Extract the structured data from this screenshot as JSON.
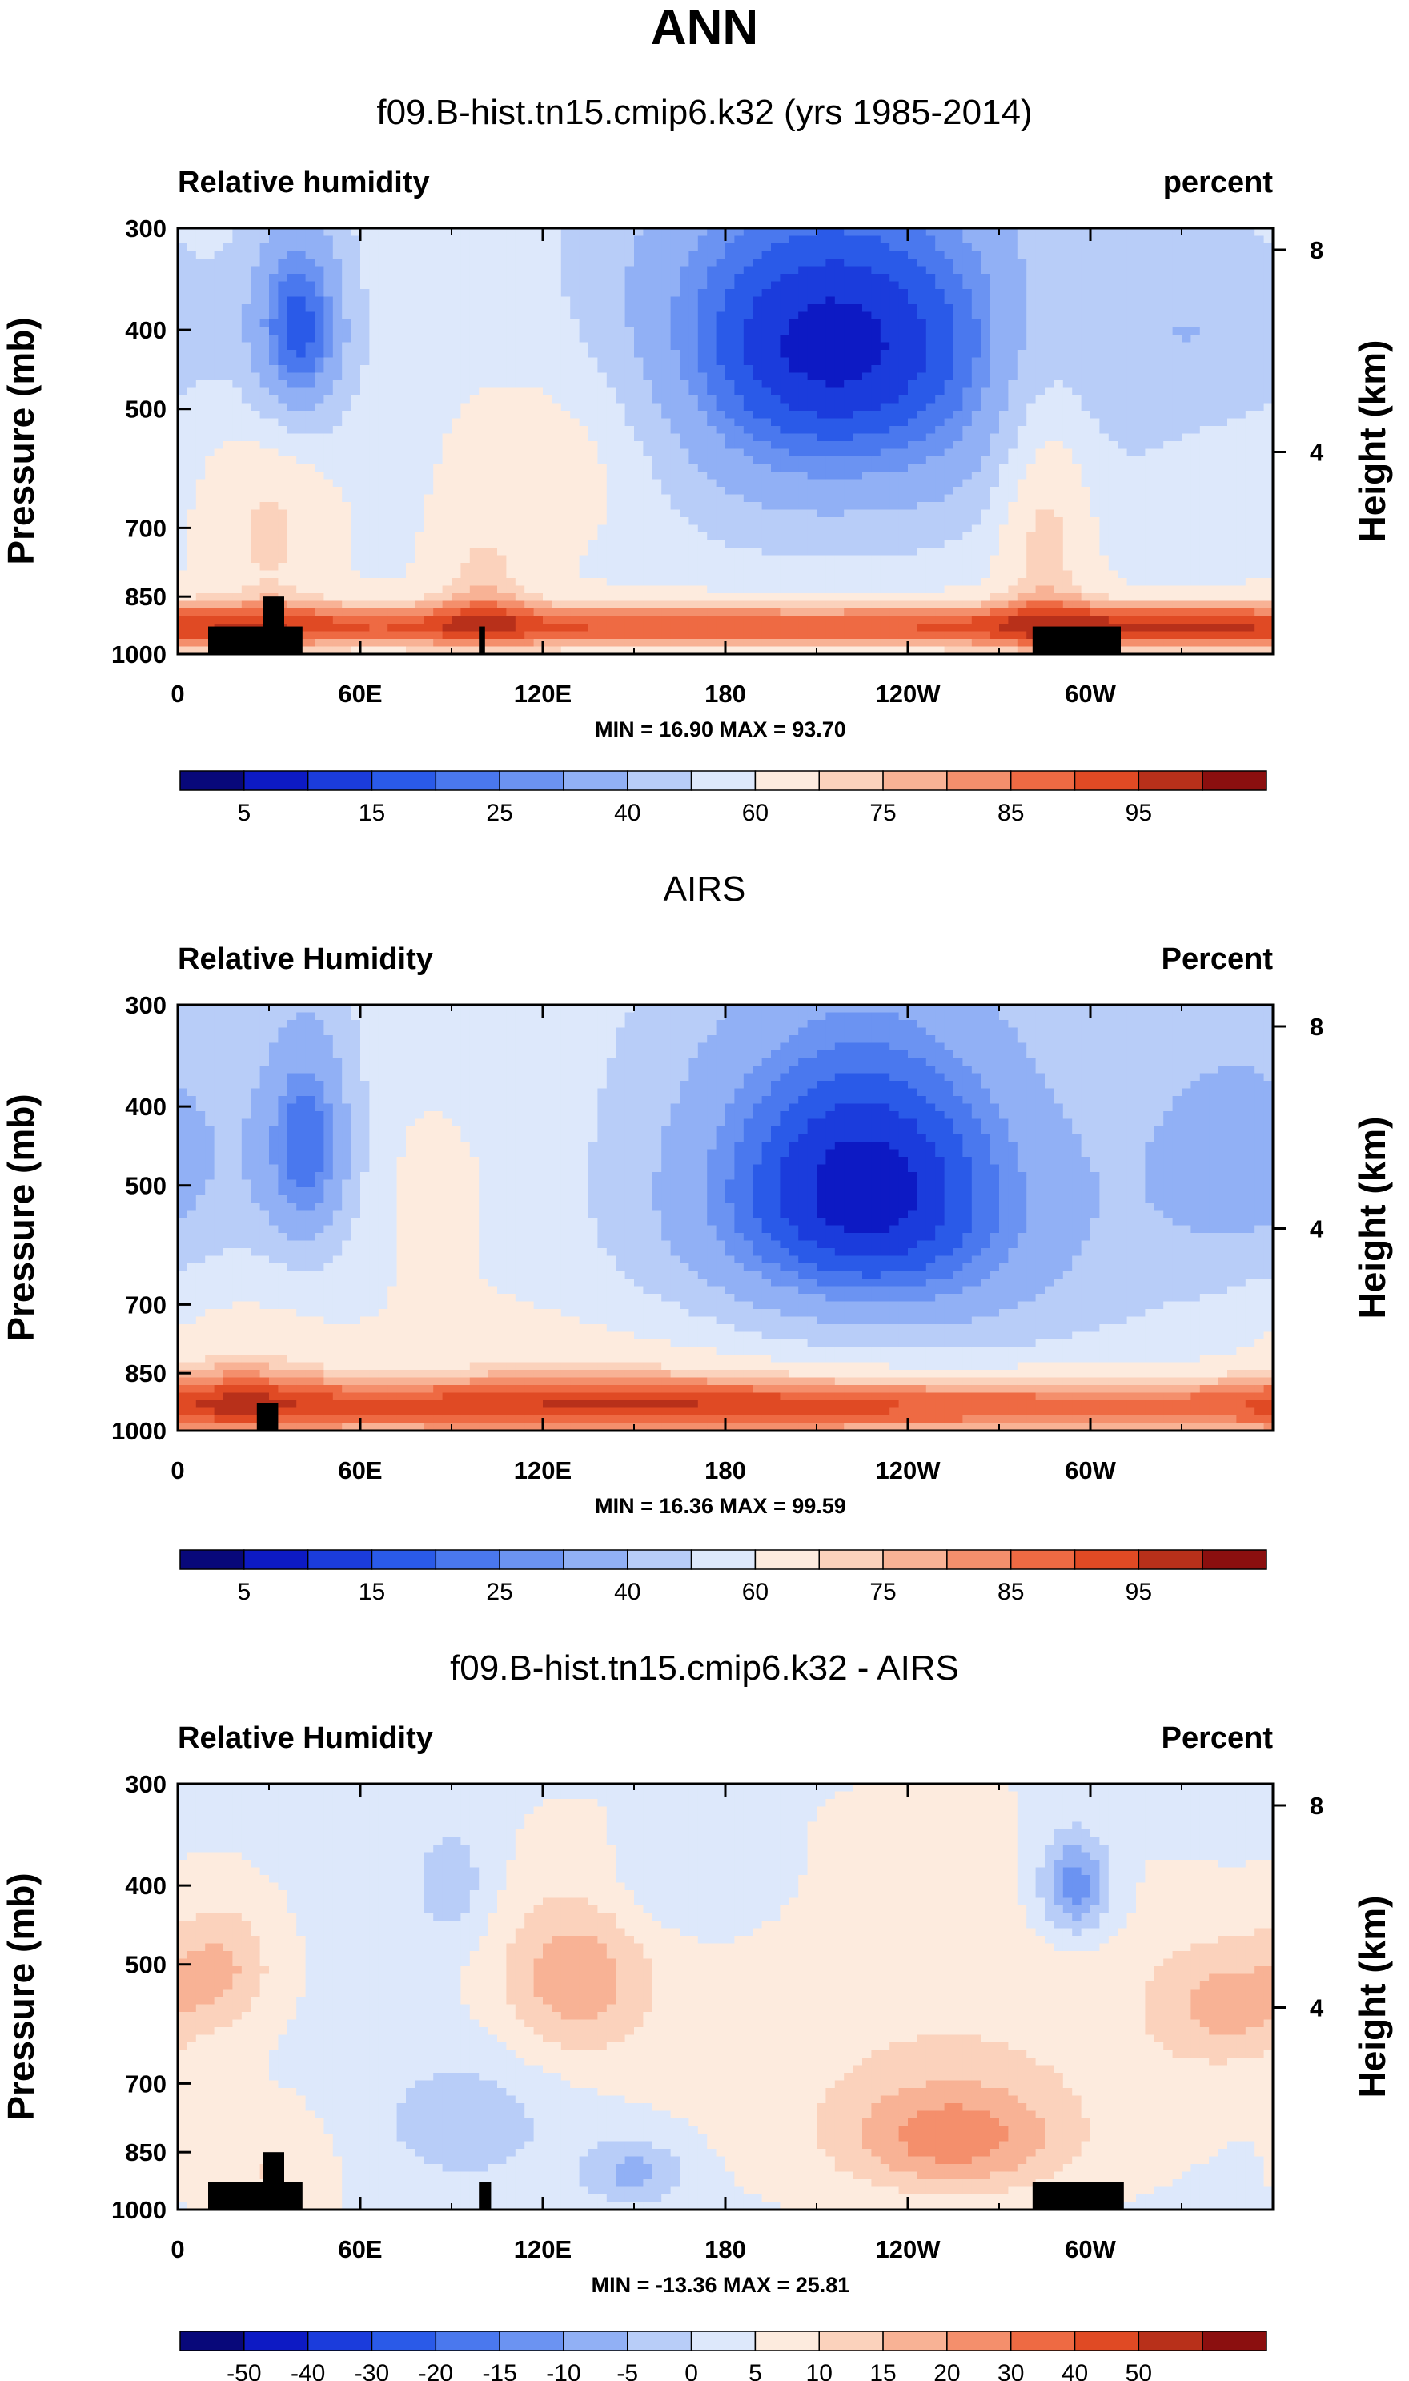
{
  "figure_title": "ANN",
  "chart_data": [
    {
      "type": "heatmap",
      "title": "f09.B-hist.tn15.cmip6.k32 (yrs 1985-2014)",
      "left_label": "Relative humidity",
      "right_label": "percent",
      "ylabel": "Pressure (mb)",
      "ylabel_right": "Height (km)",
      "x_ticks": [
        "0",
        "60E",
        "120E",
        "180",
        "120W",
        "60W"
      ],
      "x_tick_positions": [
        0,
        60,
        120,
        180,
        240,
        300
      ],
      "xlim": [
        0,
        360
      ],
      "y_ticks": [
        "300",
        "400",
        "500",
        "700",
        "850",
        "1000"
      ],
      "y_tick_values": [
        300,
        400,
        500,
        700,
        850,
        1000
      ],
      "ylim": [
        300,
        1000
      ],
      "y_right_ticks": [
        "8",
        "4"
      ],
      "y_right_values": [
        8,
        4
      ],
      "stats": "MIN = 16.90   MAX = 93.70",
      "colorbar": {
        "levels": [
          5,
          10,
          15,
          20,
          25,
          30,
          40,
          50,
          60,
          70,
          75,
          80,
          85,
          90,
          95
        ],
        "labels": [
          "5",
          "15",
          "25",
          "40",
          "60",
          "75",
          "85",
          "95"
        ],
        "colors": [
          "#08087a",
          "#0d1ac4",
          "#1b3cdc",
          "#2a5ae8",
          "#4a78ee",
          "#6b93f2",
          "#91b0f5",
          "#b8cdf8",
          "#dde8fb",
          "#fdebde",
          "#fbd2bc",
          "#f8b295",
          "#f48f6c",
          "#ee6a43",
          "#e04a24",
          "#b8301a",
          "#8b0f0f"
        ]
      },
      "field": {
        "base": 58,
        "features": [
          {
            "lon": 40,
            "p": 400,
            "slon": 12,
            "sp": 90,
            "amp": -40
          },
          {
            "lon": 215,
            "p": 400,
            "slon": 55,
            "sp": 140,
            "amp": -48
          },
          {
            "lon": 210,
            "p": 620,
            "slon": 70,
            "sp": 120,
            "amp": -12
          },
          {
            "lon": 345,
            "p": 400,
            "slon": 28,
            "sp": 80,
            "amp": -14
          },
          {
            "lon": 130,
            "p": 560,
            "slon": 28,
            "sp": 130,
            "amp": 18
          },
          {
            "lon": 285,
            "p": 650,
            "slon": 12,
            "sp": 200,
            "amp": 22
          },
          {
            "lon": 30,
            "p": 700,
            "slon": 15,
            "sp": 150,
            "amp": 14
          },
          {
            "lon": 180,
            "p": 925,
            "slon": 500,
            "sp": 45,
            "amp": 32
          },
          {
            "lon": 330,
            "p": 925,
            "slon": 40,
            "sp": 50,
            "amp": 8
          },
          {
            "lon": 100,
            "p": 820,
            "slon": 12,
            "sp": 110,
            "amp": 14
          }
        ]
      },
      "topography": [
        {
          "lon0": 10,
          "lon1": 41,
          "p": 925
        },
        {
          "lon0": 28,
          "lon1": 35,
          "p": 850
        },
        {
          "lon0": 99,
          "lon1": 101,
          "p": 925
        },
        {
          "lon0": 281,
          "lon1": 310,
          "p": 925
        }
      ]
    },
    {
      "type": "heatmap",
      "title": "AIRS",
      "left_label": "Relative Humidity",
      "right_label": "Percent",
      "ylabel": "Pressure (mb)",
      "ylabel_right": "Height (km)",
      "x_ticks": [
        "0",
        "60E",
        "120E",
        "180",
        "120W",
        "60W"
      ],
      "x_tick_positions": [
        0,
        60,
        120,
        180,
        240,
        300
      ],
      "xlim": [
        0,
        360
      ],
      "y_ticks": [
        "300",
        "400",
        "500",
        "700",
        "850",
        "1000"
      ],
      "y_tick_values": [
        300,
        400,
        500,
        700,
        850,
        1000
      ],
      "ylim": [
        300,
        1000
      ],
      "y_right_ticks": [
        "8",
        "4"
      ],
      "y_right_values": [
        8,
        4
      ],
      "stats": "MIN = 16.36   MAX = 99.59",
      "colorbar": {
        "levels": [
          5,
          10,
          15,
          20,
          25,
          30,
          40,
          50,
          60,
          70,
          75,
          80,
          85,
          90,
          95
        ],
        "labels": [
          "5",
          "15",
          "25",
          "40",
          "60",
          "75",
          "85",
          "95"
        ],
        "colors": [
          "#08087a",
          "#0d1ac4",
          "#1b3cdc",
          "#2a5ae8",
          "#4a78ee",
          "#6b93f2",
          "#91b0f5",
          "#b8cdf8",
          "#dde8fb",
          "#fdebde",
          "#fbd2bc",
          "#f8b295",
          "#f48f6c",
          "#ee6a43",
          "#e04a24",
          "#b8301a",
          "#8b0f0f"
        ]
      },
      "field": {
        "base": 56,
        "features": [
          {
            "lon": 43,
            "p": 450,
            "slon": 12,
            "sp": 110,
            "amp": -36
          },
          {
            "lon": 225,
            "p": 470,
            "slon": 45,
            "sp": 160,
            "amp": -44
          },
          {
            "lon": 225,
            "p": 650,
            "slon": 60,
            "sp": 120,
            "amp": -14
          },
          {
            "lon": 350,
            "p": 460,
            "slon": 25,
            "sp": 120,
            "amp": -22
          },
          {
            "lon": 180,
            "p": 935,
            "slon": 400,
            "sp": 60,
            "amp": 34
          },
          {
            "lon": 150,
            "p": 800,
            "slon": 60,
            "sp": 140,
            "amp": 10
          },
          {
            "lon": 20,
            "p": 850,
            "slon": 20,
            "sp": 120,
            "amp": 12
          },
          {
            "lon": 80,
            "p": 500,
            "slon": 30,
            "sp": 120,
            "amp": 6
          }
        ]
      },
      "topography": [
        {
          "lon0": 26,
          "lon1": 33,
          "p": 925
        }
      ]
    },
    {
      "type": "heatmap",
      "title": "f09.B-hist.tn15.cmip6.k32 - AIRS",
      "left_label": "Relative Humidity",
      "right_label": "Percent",
      "ylabel": "Pressure (mb)",
      "ylabel_right": "Height (km)",
      "x_ticks": [
        "0",
        "60E",
        "120E",
        "180",
        "120W",
        "60W"
      ],
      "x_tick_positions": [
        0,
        60,
        120,
        180,
        240,
        300
      ],
      "xlim": [
        0,
        360
      ],
      "y_ticks": [
        "300",
        "400",
        "500",
        "700",
        "850",
        "1000"
      ],
      "y_tick_values": [
        300,
        400,
        500,
        700,
        850,
        1000
      ],
      "ylim": [
        300,
        1000
      ],
      "y_right_ticks": [
        "8",
        "4"
      ],
      "y_right_values": [
        8,
        4
      ],
      "stats": "MIN = -13.36   MAX = 25.81",
      "colorbar": {
        "levels": [
          -50,
          -40,
          -30,
          -20,
          -15,
          -10,
          -5,
          0,
          5,
          10,
          15,
          20,
          30,
          40,
          50
        ],
        "labels": [
          "-50",
          "-40",
          "-30",
          "-20",
          "-15",
          "-10",
          "-5",
          "0",
          "5",
          "10",
          "15",
          "20",
          "30",
          "40",
          "50"
        ],
        "colors": [
          "#08087a",
          "#0d1ac4",
          "#1b3cdc",
          "#2a5ae8",
          "#4a78ee",
          "#6b93f2",
          "#91b0f5",
          "#b8cdf8",
          "#dde8fb",
          "#fdebde",
          "#fbd2bc",
          "#f8b295",
          "#f48f6c",
          "#ee6a43",
          "#e04a24",
          "#b8301a",
          "#8b0f0f"
        ]
      },
      "field": {
        "base": 4,
        "features": [
          {
            "lon": 130,
            "p": 520,
            "slon": 18,
            "sp": 90,
            "amp": 14
          },
          {
            "lon": 15,
            "p": 500,
            "slon": 12,
            "sp": 60,
            "amp": 10
          },
          {
            "lon": 255,
            "p": 820,
            "slon": 25,
            "sp": 90,
            "amp": 16
          },
          {
            "lon": 345,
            "p": 560,
            "slon": 18,
            "sp": 70,
            "amp": 12
          },
          {
            "lon": 250,
            "p": 650,
            "slon": 60,
            "sp": 200,
            "amp": 5
          },
          {
            "lon": 295,
            "p": 400,
            "slon": 8,
            "sp": 40,
            "amp": -18
          },
          {
            "lon": 95,
            "p": 780,
            "slon": 22,
            "sp": 110,
            "amp": -7
          },
          {
            "lon": 150,
            "p": 900,
            "slon": 12,
            "sp": 60,
            "amp": -11
          },
          {
            "lon": 90,
            "p": 400,
            "slon": 10,
            "sp": 50,
            "amp": -7
          },
          {
            "lon": 165,
            "p": 400,
            "slon": 20,
            "sp": 40,
            "amp": -5
          },
          {
            "lon": 30,
            "p": 900,
            "slon": 15,
            "sp": 100,
            "amp": 6
          }
        ]
      },
      "topography": [
        {
          "lon0": 10,
          "lon1": 41,
          "p": 925
        },
        {
          "lon0": 28,
          "lon1": 35,
          "p": 850
        },
        {
          "lon0": 99,
          "lon1": 103,
          "p": 925
        },
        {
          "lon0": 281,
          "lon1": 311,
          "p": 925
        }
      ]
    }
  ]
}
